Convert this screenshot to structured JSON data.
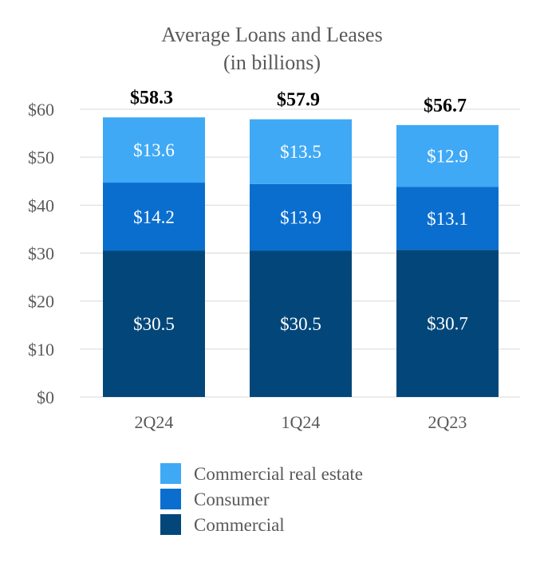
{
  "chart_data": {
    "type": "bar",
    "stacked": true,
    "title_lines": [
      "Average Loans and Leases",
      "(in billions)"
    ],
    "xlabel": "",
    "ylabel": "",
    "categories": [
      "2Q24",
      "1Q24",
      "2Q23"
    ],
    "ylim": [
      0,
      60
    ],
    "yticks": [
      0,
      10,
      20,
      30,
      40,
      50,
      60
    ],
    "ytick_labels": [
      "$0",
      "$10",
      "$20",
      "$30",
      "$40",
      "$50",
      "$60"
    ],
    "grid": true,
    "legend_position": "bottom",
    "series": [
      {
        "name": "Commercial",
        "values": [
          30.5,
          30.5,
          30.7
        ],
        "labels": [
          "$30.5",
          "$30.5",
          "$30.7"
        ],
        "color": "#03477a"
      },
      {
        "name": "Consumer",
        "values": [
          14.2,
          13.9,
          13.1
        ],
        "labels": [
          "$14.2",
          "$13.9",
          "$13.1"
        ],
        "color": "#0a6ecf"
      },
      {
        "name": "Commercial real estate",
        "values": [
          13.6,
          13.5,
          12.9
        ],
        "labels": [
          "$13.6",
          "$13.5",
          "$12.9"
        ],
        "color": "#3fa9f5"
      }
    ],
    "totals": [
      "$58.3",
      "$57.9",
      "$56.7"
    ],
    "legend_order": [
      "Commercial real estate",
      "Consumer",
      "Commercial"
    ]
  }
}
